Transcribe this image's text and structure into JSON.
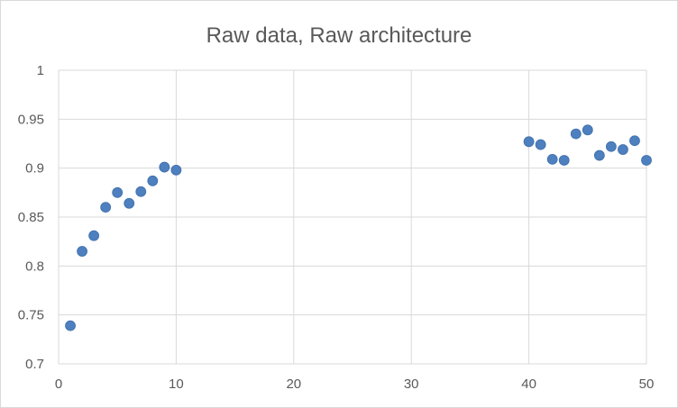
{
  "chart_data": {
    "type": "scatter",
    "title": "Raw data, Raw architecture",
    "xlabel": "",
    "ylabel": "",
    "xlim": [
      0,
      50
    ],
    "ylim": [
      0.7,
      1
    ],
    "xticks": [
      0,
      10,
      20,
      30,
      40,
      50
    ],
    "xtick_labels": [
      "0",
      "10",
      "20",
      "30",
      "40",
      "50"
    ],
    "yticks": [
      0.7,
      0.75,
      0.8,
      0.85,
      0.9,
      0.95,
      1
    ],
    "ytick_labels": [
      "0.7",
      "0.75",
      "0.8",
      "0.85",
      "0.9",
      "0.95",
      "1"
    ],
    "grid": true,
    "marker_color": "#4e7fbf",
    "series": [
      {
        "points": [
          {
            "x": 1,
            "y": 0.739
          },
          {
            "x": 2,
            "y": 0.815
          },
          {
            "x": 3,
            "y": 0.831
          },
          {
            "x": 4,
            "y": 0.86
          },
          {
            "x": 5,
            "y": 0.875
          },
          {
            "x": 6,
            "y": 0.864
          },
          {
            "x": 7,
            "y": 0.876
          },
          {
            "x": 8,
            "y": 0.887
          },
          {
            "x": 9,
            "y": 0.901
          },
          {
            "x": 10,
            "y": 0.898
          },
          {
            "x": 40,
            "y": 0.927
          },
          {
            "x": 41,
            "y": 0.924
          },
          {
            "x": 42,
            "y": 0.909
          },
          {
            "x": 43,
            "y": 0.908
          },
          {
            "x": 44,
            "y": 0.935
          },
          {
            "x": 45,
            "y": 0.939
          },
          {
            "x": 46,
            "y": 0.913
          },
          {
            "x": 47,
            "y": 0.922
          },
          {
            "x": 48,
            "y": 0.919
          },
          {
            "x": 49,
            "y": 0.928
          },
          {
            "x": 50,
            "y": 0.908
          }
        ]
      }
    ]
  }
}
